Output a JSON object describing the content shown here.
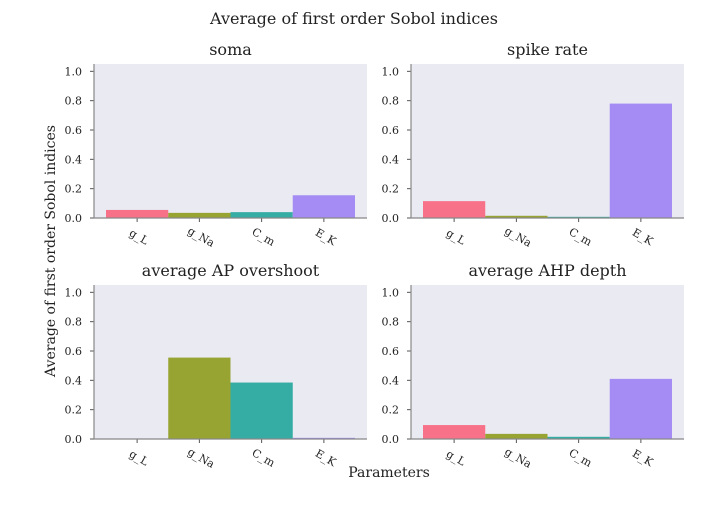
{
  "figure": {
    "title": "Average of first order Sobol indices",
    "xlabel": "Parameters",
    "ylabel": "Average of first order Sobol indices"
  },
  "colors": {
    "background": "#EAEAF2",
    "g_L": "#F77189",
    "g_Na": "#97A431",
    "C_m": "#36ADA4",
    "E_K": "#A48CF4"
  },
  "chart_data": [
    {
      "type": "bar",
      "title": "soma",
      "categories": [
        "g_L",
        "g_Na",
        "C_m",
        "E_K"
      ],
      "values": [
        0.055,
        0.035,
        0.04,
        0.155
      ],
      "ylim": [
        0,
        1.05
      ],
      "yticks": [
        "0.0",
        "0.2",
        "0.4",
        "0.6",
        "0.8",
        "1.0"
      ],
      "grid": false
    },
    {
      "type": "bar",
      "title": "spike rate",
      "categories": [
        "g_L",
        "g_Na",
        "C_m",
        "E_K"
      ],
      "values": [
        0.115,
        0.015,
        0.008,
        0.78
      ],
      "ylim": [
        0,
        1.05
      ],
      "yticks": [
        "0.0",
        "0.2",
        "0.4",
        "0.6",
        "0.8",
        "1.0"
      ],
      "grid": false
    },
    {
      "type": "bar",
      "title": "average AP overshoot",
      "categories": [
        "g_L",
        "g_Na",
        "C_m",
        "E_K"
      ],
      "values": [
        0.0,
        0.555,
        0.385,
        0.008
      ],
      "ylim": [
        0,
        1.05
      ],
      "yticks": [
        "0.0",
        "0.2",
        "0.4",
        "0.6",
        "0.8",
        "1.0"
      ],
      "grid": false
    },
    {
      "type": "bar",
      "title": "average AHP depth",
      "categories": [
        "g_L",
        "g_Na",
        "C_m",
        "E_K"
      ],
      "values": [
        0.095,
        0.035,
        0.015,
        0.41
      ],
      "ylim": [
        0,
        1.05
      ],
      "yticks": [
        "0.0",
        "0.2",
        "0.4",
        "0.6",
        "0.8",
        "1.0"
      ],
      "grid": false
    }
  ]
}
